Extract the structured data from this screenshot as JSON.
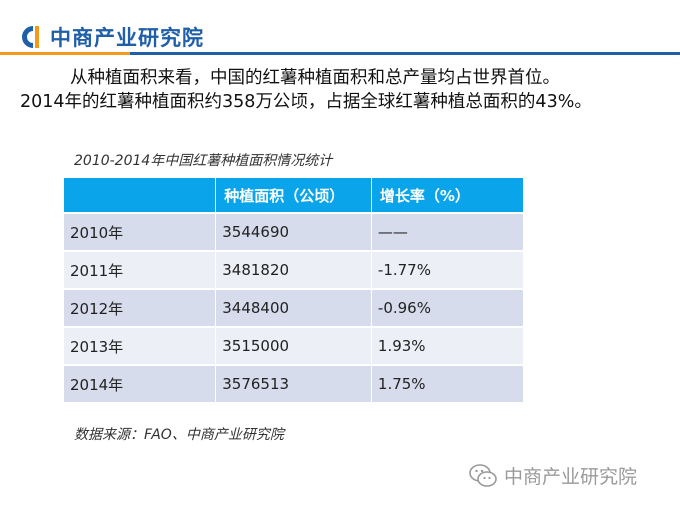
{
  "header": {
    "logo_text": "中商产业研究院",
    "logo_icon": "company-logo-icon"
  },
  "intro": {
    "line1": "从种植面积来看，中国的红薯种植面积和总产量均占世界首位。",
    "line2": "2014年的红薯种植面积约358万公顷，占据全球红薯种植总面积的43%。"
  },
  "table_title": "2010-2014年中国红薯种植面积情况统计",
  "table": {
    "headers": [
      "",
      "种植面积（公顷）",
      "增长率（%）"
    ],
    "rows": [
      [
        "2010年",
        "3544690",
        "——"
      ],
      [
        "2011年",
        "3481820",
        "-1.77%"
      ],
      [
        "2012年",
        "3448400",
        "-0.96%"
      ],
      [
        "2013年",
        "3515000",
        "1.93%"
      ],
      [
        "2014年",
        "3576513",
        "1.75%"
      ]
    ]
  },
  "source": "数据来源：FAO、中商产业研究院",
  "watermark": {
    "text": "中商产业研究院",
    "icon": "wechat-icon"
  },
  "colors": {
    "brand_blue": "#1f5fa8",
    "accent_orange": "#f39a1c",
    "table_header": "#0aa4ea"
  }
}
